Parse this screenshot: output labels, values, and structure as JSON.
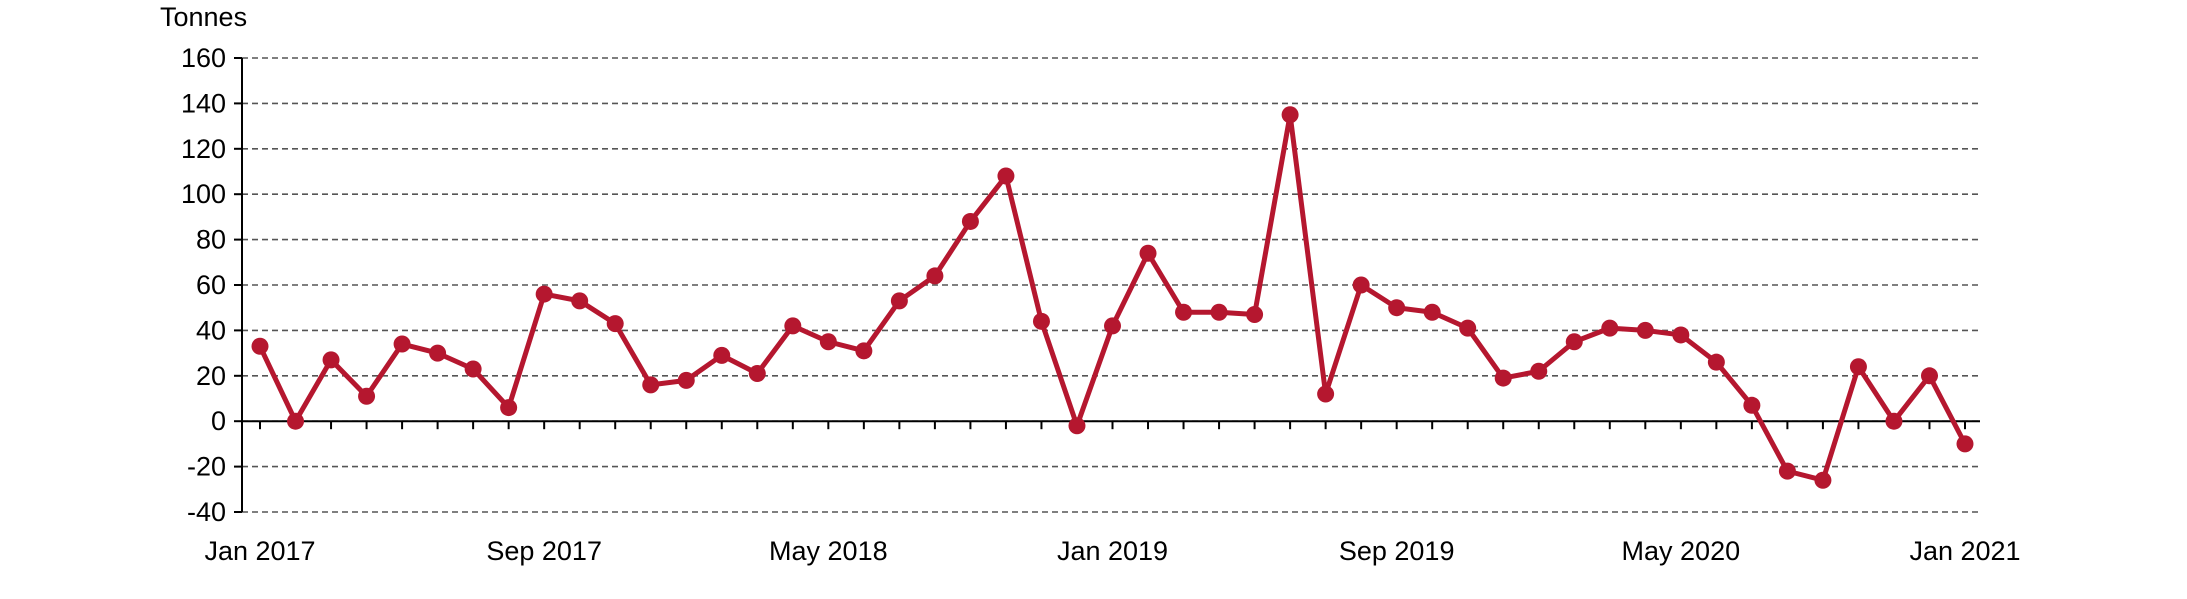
{
  "chart_data": {
    "type": "line",
    "ylabel": "Tonnes",
    "xlabel": "",
    "title": "",
    "ylim": [
      -40,
      160
    ],
    "yticks": [
      -40,
      -20,
      0,
      20,
      40,
      60,
      80,
      100,
      120,
      140,
      160
    ],
    "xtick_labels": [
      "Jan 2017",
      "Sep 2017",
      "May 2018",
      "Jan 2019",
      "Sep 2019",
      "May 2020",
      "Jan 2021"
    ],
    "grid": "horizontal dashed",
    "legend": "none",
    "color": "#b5172f",
    "x": [
      "Jan 2017",
      "Feb 2017",
      "Mar 2017",
      "Apr 2017",
      "May 2017",
      "Jun 2017",
      "Jul 2017",
      "Aug 2017",
      "Sep 2017",
      "Oct 2017",
      "Nov 2017",
      "Dec 2017",
      "Jan 2018",
      "Feb 2018",
      "Mar 2018",
      "Apr 2018",
      "May 2018",
      "Jun 2018",
      "Jul 2018",
      "Aug 2018",
      "Sep 2018",
      "Oct 2018",
      "Nov 2018",
      "Dec 2018",
      "Jan 2019",
      "Feb 2019",
      "Mar 2019",
      "Apr 2019",
      "May 2019",
      "Jun 2019",
      "Jul 2019",
      "Aug 2019",
      "Sep 2019",
      "Oct 2019",
      "Nov 2019",
      "Dec 2019",
      "Jan 2020",
      "Feb 2020",
      "Mar 2020",
      "Apr 2020",
      "May 2020",
      "Jun 2020",
      "Jul 2020",
      "Aug 2020",
      "Sep 2020",
      "Oct 2020",
      "Nov 2020",
      "Dec 2020",
      "Jan 2021"
    ],
    "series": [
      {
        "values": [
          33,
          0,
          27,
          11,
          34,
          30,
          23,
          6,
          56,
          53,
          43,
          16,
          18,
          29,
          21,
          42,
          35,
          31,
          53,
          64,
          88,
          108,
          44,
          -2,
          42,
          74,
          48,
          48,
          47,
          135,
          12,
          60,
          50,
          48,
          41,
          19,
          22,
          35,
          41,
          40,
          38,
          26,
          7,
          -22,
          -26,
          24,
          0,
          20,
          -10
        ]
      }
    ]
  }
}
